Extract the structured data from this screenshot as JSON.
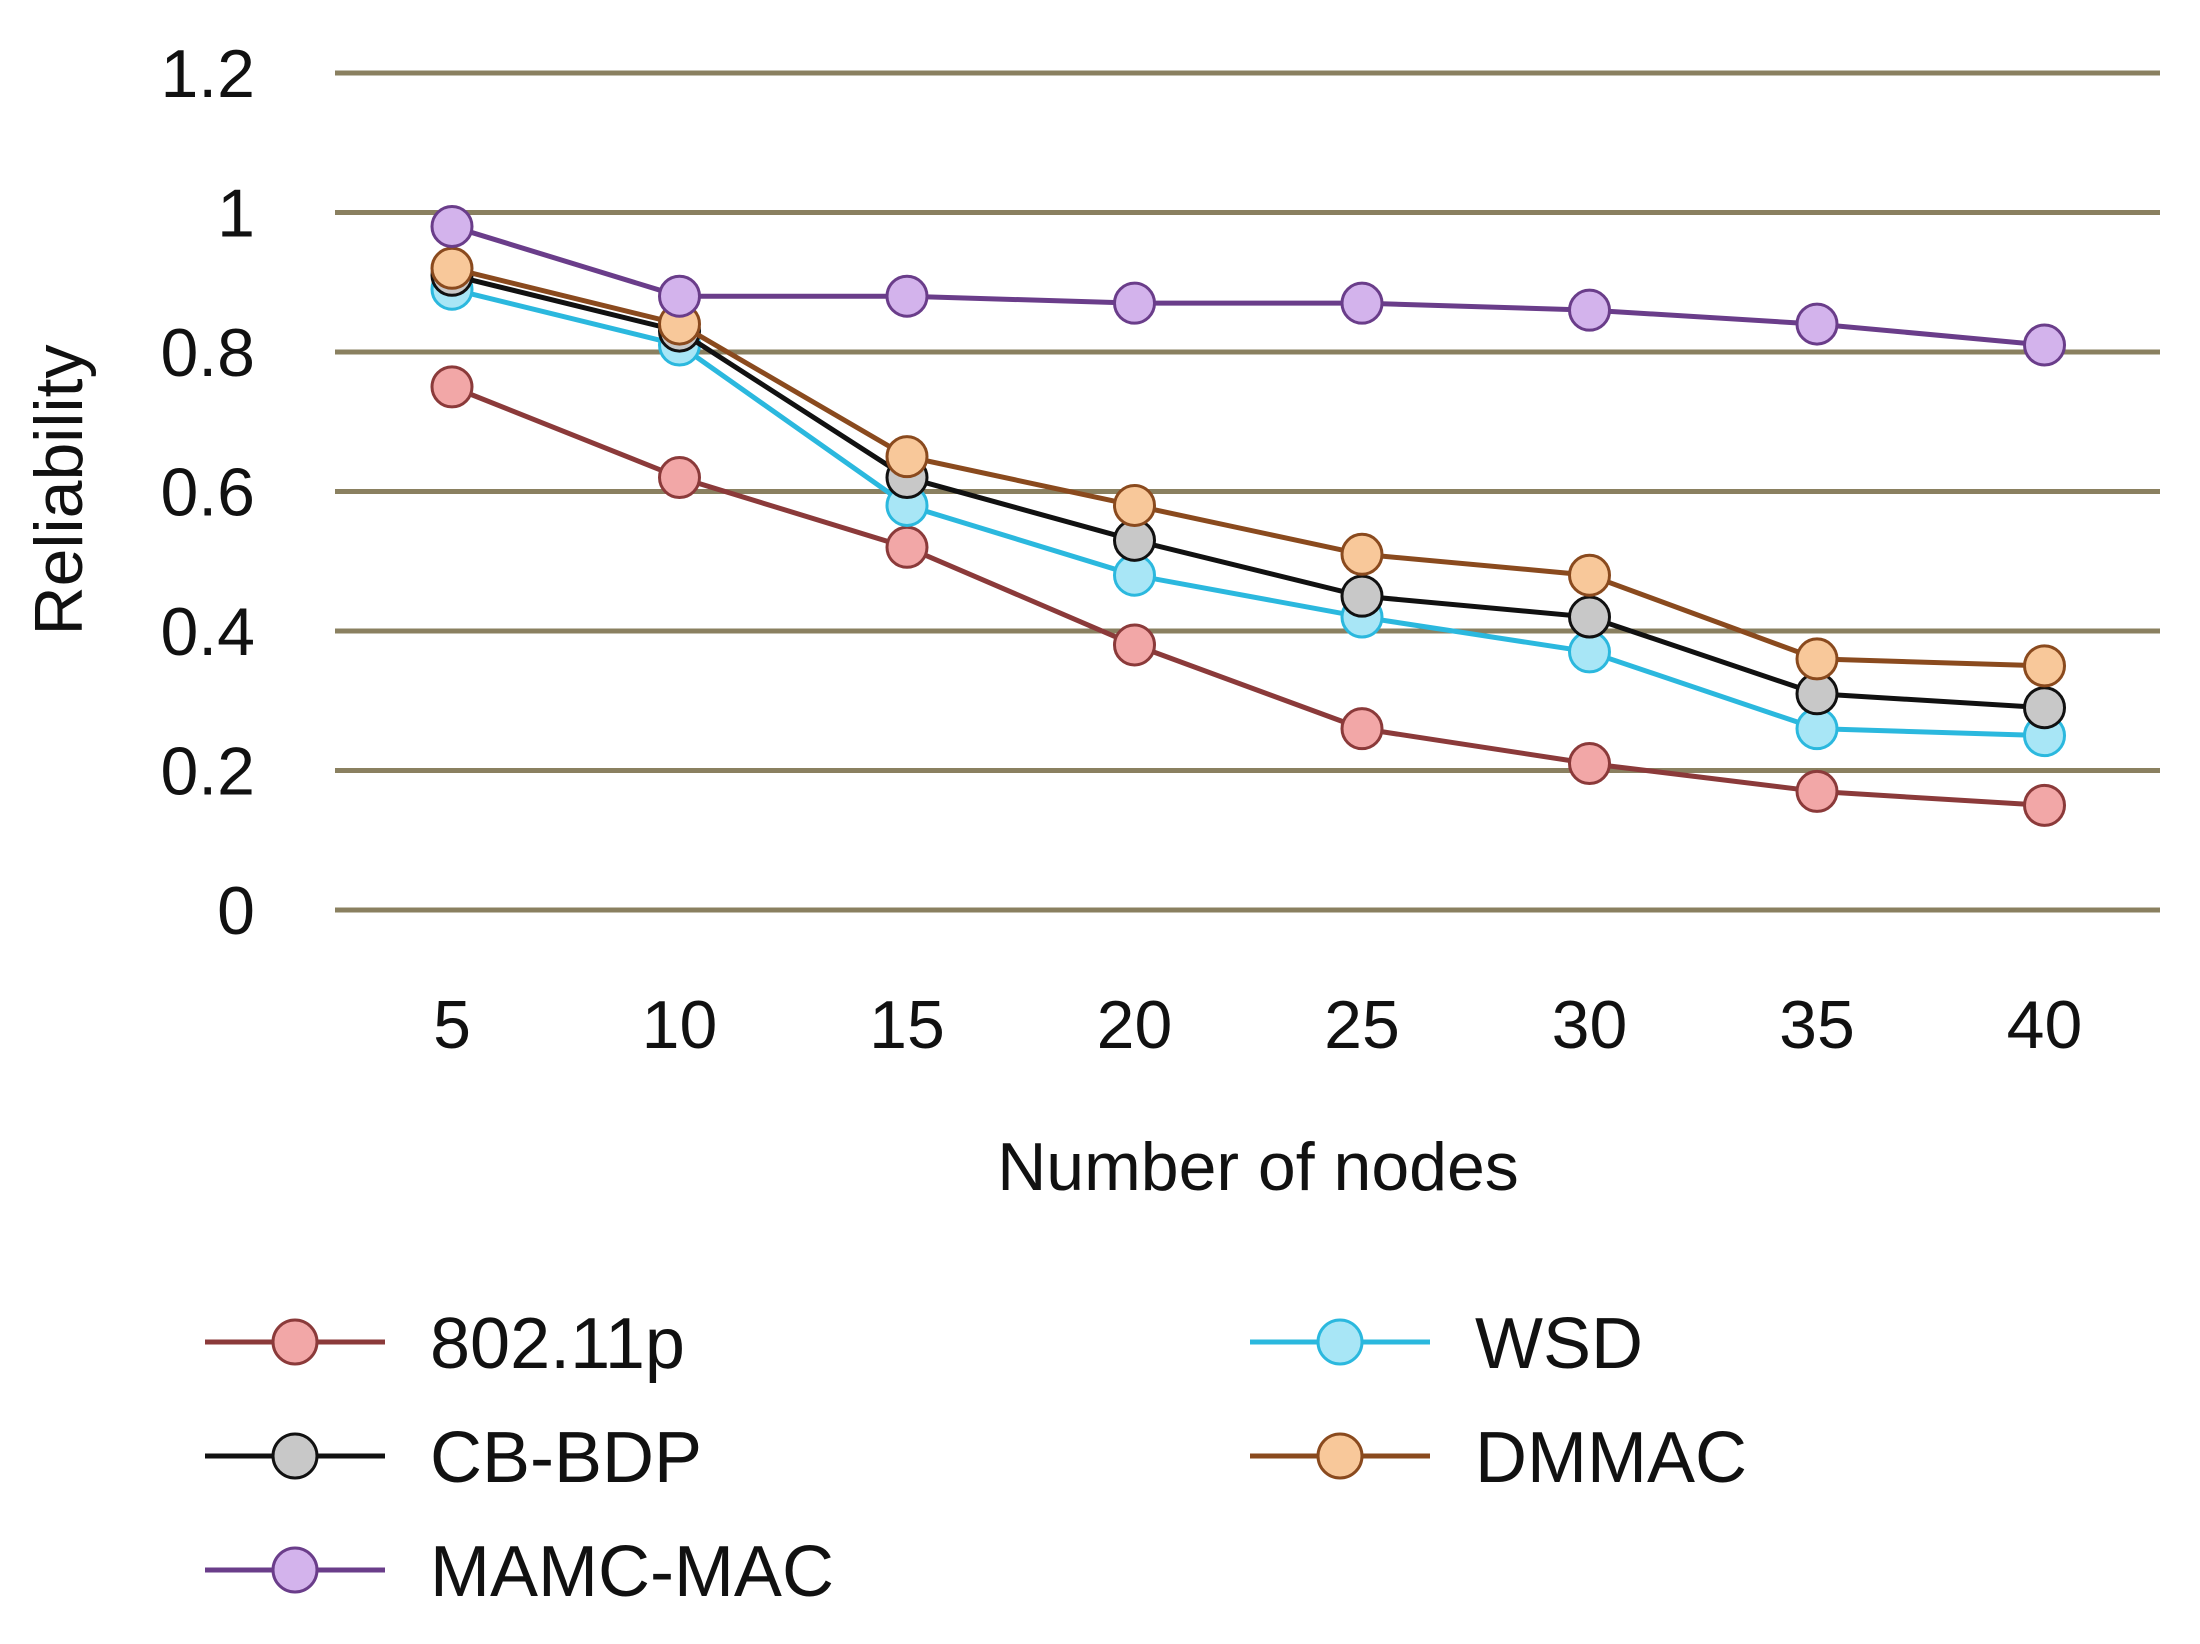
{
  "chart_data": {
    "type": "line",
    "title": "",
    "xlabel": "Number of nodes",
    "ylabel": "Reliability",
    "categories": [
      "5",
      "10",
      "15",
      "20",
      "25",
      "30",
      "35",
      "40"
    ],
    "ylim": [
      0,
      1.2
    ],
    "yticks": [
      "0",
      "0.2",
      "0.4",
      "0.6",
      "0.8",
      "1",
      "1.2"
    ],
    "grid": true,
    "legend_position": "bottom",
    "series": [
      {
        "name": "802.11p",
        "line_color": "#8b3a3a",
        "marker_color": "#f2a7a7",
        "values": [
          0.75,
          0.62,
          0.52,
          0.38,
          0.26,
          0.21,
          0.17,
          0.15
        ]
      },
      {
        "name": "WSD",
        "line_color": "#2bb8de",
        "marker_color": "#a8e6f6",
        "values": [
          0.89,
          0.81,
          0.58,
          0.48,
          0.42,
          0.37,
          0.26,
          0.25
        ]
      },
      {
        "name": "CB-BDP",
        "line_color": "#111111",
        "marker_color": "#c8c8c8",
        "values": [
          0.91,
          0.83,
          0.62,
          0.53,
          0.45,
          0.42,
          0.31,
          0.29
        ]
      },
      {
        "name": "DMMAC",
        "line_color": "#8a4a1e",
        "marker_color": "#f8c89a",
        "values": [
          0.92,
          0.84,
          0.65,
          0.58,
          0.51,
          0.48,
          0.36,
          0.35
        ]
      },
      {
        "name": "MAMC-MAC",
        "line_color": "#6a3d8a",
        "marker_color": "#d3b3ec",
        "values": [
          0.98,
          0.88,
          0.88,
          0.87,
          0.87,
          0.86,
          0.84,
          0.81
        ]
      }
    ]
  }
}
